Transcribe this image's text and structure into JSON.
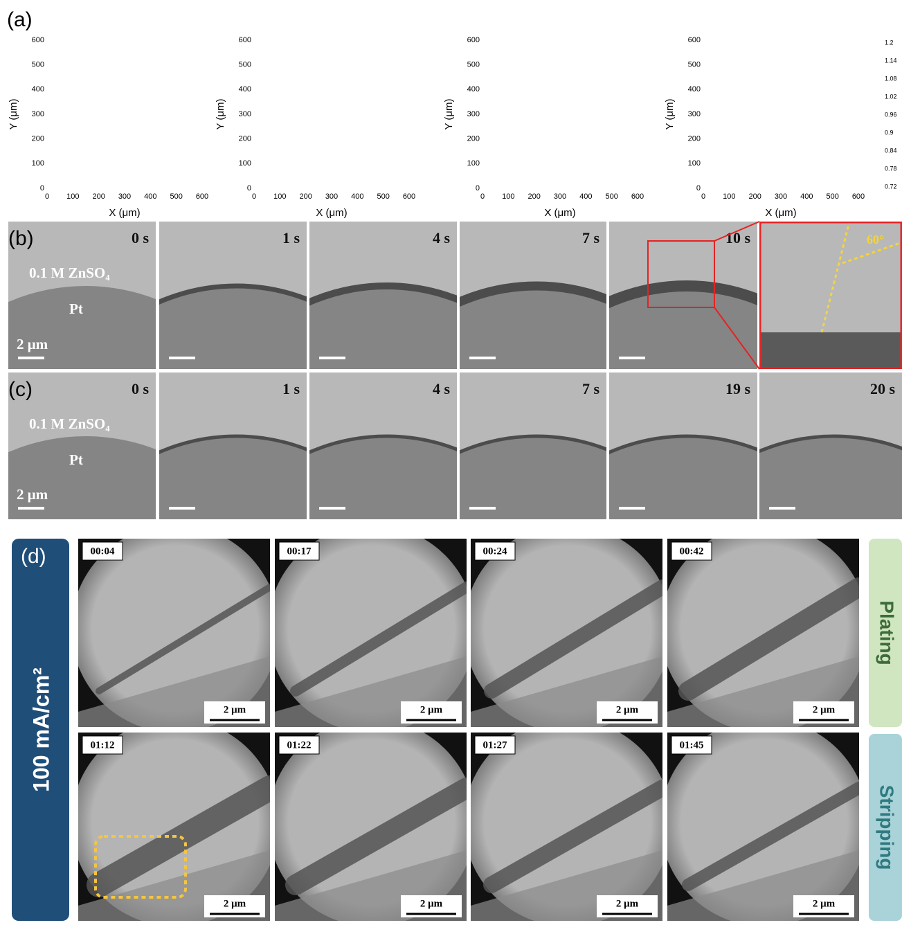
{
  "panel_a": {
    "label": "(a)",
    "x_label": "X (μm)",
    "y_label": "Y (μm)",
    "ticks": [
      "0",
      "100",
      "200",
      "300",
      "400",
      "500",
      "600"
    ],
    "colorbar_ticks": [
      "1.2",
      "1.14",
      "1.08",
      "1.02",
      "0.96",
      "0.9",
      "0.84",
      "0.78",
      "0.72"
    ]
  },
  "panel_b": {
    "label": "(b)",
    "electrolyte": "0.1 M ZnSO₄",
    "electrode": "Pt",
    "scale": "2 μm",
    "times": [
      "0 s",
      "1 s",
      "4 s",
      "7 s",
      "10 s"
    ],
    "angle": "60°"
  },
  "panel_c": {
    "label": "(c)",
    "electrolyte": "0.1 M ZnSO₄",
    "electrode": "Pt",
    "scale": "2 μm",
    "times": [
      "0 s",
      "1 s",
      "4 s",
      "7 s",
      "19 s",
      "20 s"
    ]
  },
  "panel_d": {
    "label": "(d)",
    "current_density": "100 mA/cm²",
    "scale": "2 μm",
    "plating_times": [
      "00:04",
      "00:17",
      "00:24",
      "00:42"
    ],
    "stripping_times": [
      "01:12",
      "01:22",
      "01:27",
      "01:45"
    ],
    "plating": "Plating",
    "stripping": "Stripping"
  }
}
